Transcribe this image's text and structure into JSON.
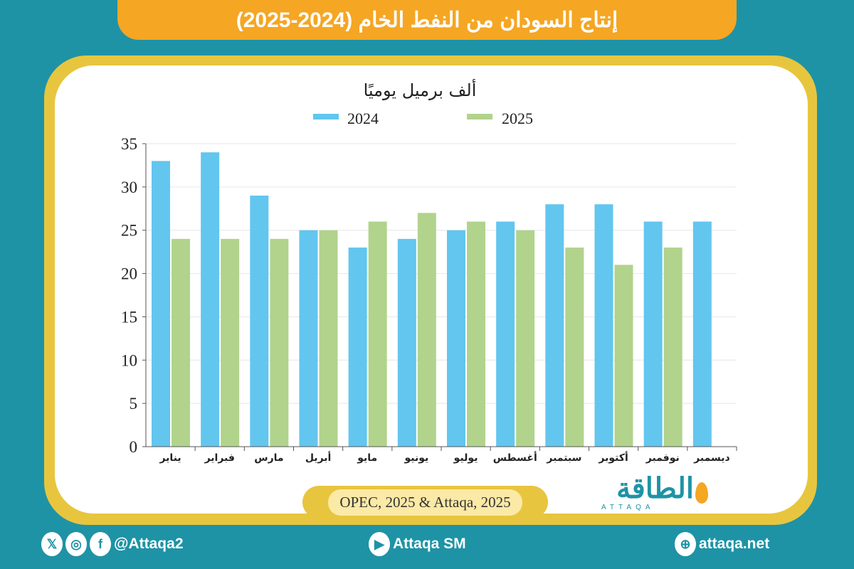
{
  "title": "إنتاج السودان من النفط الخام (2024-2025)",
  "source": "OPEC, 2025 & Attaqa, 2025",
  "logo": {
    "arabic": "الطاقة",
    "english": "ATTAQA"
  },
  "footer": {
    "social_handle": "@Attaqa2",
    "youtube": "Attaqa SM",
    "website": "attaqa.net"
  },
  "colors": {
    "series_2024": "#62c6ef",
    "series_2025": "#b1d38c",
    "title_bar": "#f5a623",
    "frame": "#e8c53e",
    "background": "#1e93a6"
  },
  "chart_data": {
    "type": "bar",
    "title": "ألف برميل يوميًا",
    "categories": [
      "يناير",
      "فبراير",
      "مارس",
      "أبريل",
      "مايو",
      "يونيو",
      "يوليو",
      "أغسطس",
      "سبتمبر",
      "أكتوبر",
      "نوفمبر",
      "ديسمبر"
    ],
    "series": [
      {
        "name": "2024",
        "values": [
          33,
          34,
          29,
          25,
          23,
          24,
          25,
          26,
          28,
          28,
          26,
          26
        ]
      },
      {
        "name": "2025",
        "values": [
          24,
          24,
          24,
          25,
          26,
          27,
          26,
          25,
          23,
          21,
          23,
          null
        ]
      }
    ],
    "ylim": [
      0,
      35
    ],
    "yticks": [
      0,
      5,
      10,
      15,
      20,
      25,
      30,
      35
    ],
    "grid": true,
    "legend": "top"
  }
}
